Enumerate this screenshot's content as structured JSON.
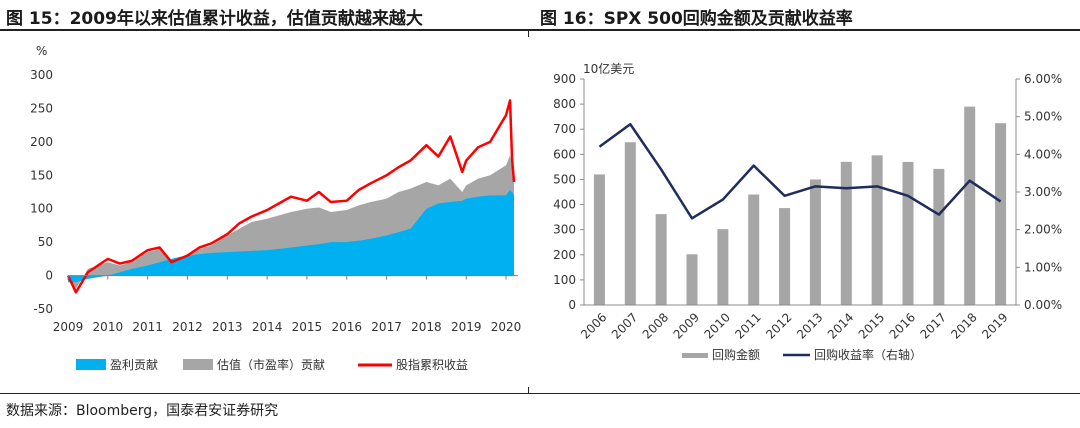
{
  "titles": {
    "left": "图 15：2009年以来估值累计收益，估值贡献越来越大",
    "right": "图 16：SPX 500回购金额及贡献收益率"
  },
  "source": "数据来源：Bloomberg，国泰君安证券研究",
  "chart_data": [
    {
      "type": "area",
      "ylabel": "%",
      "ylim": [
        -50,
        300
      ],
      "yticks": [
        "300",
        "250",
        "200",
        "150",
        "100",
        "50",
        "0",
        "-50"
      ],
      "xticks": [
        "2009",
        "2010",
        "2011",
        "2012",
        "2013",
        "2014",
        "2015",
        "2016",
        "2017",
        "2018",
        "2019",
        "2020"
      ],
      "legend": [
        "盈利贡献",
        "估值（市盈率）贡献",
        "股指累积收益"
      ],
      "colors": {
        "earnings": "#00b0f0",
        "valuation": "#a6a6a6",
        "cumulative": "#ff0000"
      },
      "x": [
        2009.0,
        2009.2,
        2009.5,
        2010.0,
        2010.3,
        2010.6,
        2011.0,
        2011.3,
        2011.6,
        2011.8,
        2012.0,
        2012.3,
        2012.6,
        2013.0,
        2013.3,
        2013.6,
        2014.0,
        2014.3,
        2014.6,
        2015.0,
        2015.3,
        2015.6,
        2016.0,
        2016.3,
        2016.6,
        2017.0,
        2017.3,
        2017.6,
        2018.0,
        2018.3,
        2018.6,
        2018.9,
        2019.0,
        2019.3,
        2019.6,
        2020.0,
        2020.1,
        2020.15,
        2020.2
      ],
      "series": [
        {
          "name": "股指累积收益",
          "values": [
            0,
            -25,
            5,
            25,
            18,
            22,
            38,
            42,
            20,
            25,
            30,
            42,
            48,
            62,
            78,
            88,
            98,
            108,
            118,
            112,
            125,
            110,
            112,
            128,
            138,
            150,
            162,
            172,
            195,
            178,
            208,
            155,
            172,
            192,
            200,
            240,
            262,
            175,
            140
          ]
        },
        {
          "name": "盈利贡献",
          "values": [
            -10,
            -10,
            -5,
            0,
            5,
            10,
            15,
            20,
            25,
            28,
            30,
            32,
            34,
            35,
            36,
            37,
            38,
            40,
            42,
            45,
            47,
            50,
            50,
            52,
            55,
            60,
            65,
            70,
            100,
            108,
            110,
            112,
            115,
            118,
            120,
            120,
            128,
            125,
            120
          ]
        },
        {
          "name": "估值（市盈率）贡献",
          "values": [
            0,
            -20,
            10,
            20,
            15,
            20,
            35,
            40,
            20,
            25,
            32,
            40,
            45,
            60,
            70,
            80,
            85,
            90,
            95,
            100,
            102,
            95,
            98,
            105,
            110,
            115,
            125,
            130,
            140,
            135,
            145,
            125,
            135,
            145,
            150,
            165,
            180,
            160,
            140
          ]
        }
      ]
    },
    {
      "type": "bar",
      "ylabel": "10亿美元",
      "ylim": [
        0,
        900
      ],
      "y2lim": [
        0,
        6
      ],
      "yticks": [
        "900",
        "800",
        "700",
        "600",
        "500",
        "400",
        "300",
        "200",
        "100",
        "0"
      ],
      "y2ticks": [
        "6.00%",
        "5.00%",
        "4.00%",
        "3.00%",
        "2.00%",
        "1.00%",
        "0.00%"
      ],
      "categories": [
        "2006",
        "2007",
        "2008",
        "2009",
        "2010",
        "2011",
        "2012",
        "2013",
        "2014",
        "2015",
        "2016",
        "2017",
        "2018",
        "2019"
      ],
      "legend": [
        "回购金额",
        "回购收益率（右轴）"
      ],
      "colors": {
        "bar": "#a6a6a6",
        "line": "#1f2d5c"
      },
      "series": [
        {
          "name": "回购金额",
          "values": [
            520,
            648,
            362,
            202,
            302,
            440,
            386,
            500,
            570,
            596,
            570,
            542,
            790,
            724
          ]
        },
        {
          "name": "回购收益率（右轴）",
          "values": [
            4.2,
            4.8,
            3.6,
            2.3,
            2.8,
            3.7,
            2.9,
            3.15,
            3.1,
            3.15,
            2.9,
            2.4,
            3.3,
            2.75
          ]
        }
      ]
    }
  ]
}
